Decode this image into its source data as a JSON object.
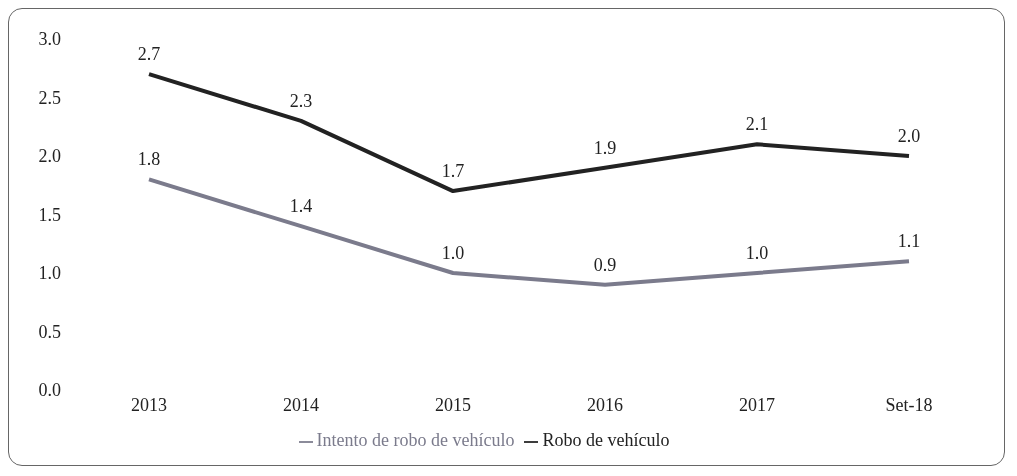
{
  "chart_data": {
    "type": "line",
    "categories": [
      "2013",
      "2014",
      "2015",
      "2016",
      "2017",
      "Set-18"
    ],
    "series": [
      {
        "name": "Robo de vehículo",
        "color": "#222222",
        "values": [
          2.7,
          2.3,
          1.7,
          1.9,
          2.1,
          2.0
        ],
        "value_labels": [
          "2.7",
          "2.3",
          "1.7",
          "1.9",
          "2.1",
          "2.0"
        ]
      },
      {
        "name": "Intento de robo de vehículo",
        "color": "#7b7b8c",
        "values": [
          1.8,
          1.4,
          1.0,
          0.9,
          1.0,
          1.1
        ],
        "value_labels": [
          "1.8",
          "1.4",
          "1.0",
          "0.9",
          "1.0",
          "1.1"
        ]
      }
    ],
    "ylim": [
      0,
      3
    ],
    "yticks": [
      {
        "value": 0,
        "label": "0.0"
      },
      {
        "value": 0.5,
        "label": "0.5"
      },
      {
        "value": 1,
        "label": "1.0"
      },
      {
        "value": 1.5,
        "label": "1.5"
      },
      {
        "value": 2,
        "label": "2.0"
      },
      {
        "value": 2.5,
        "label": "2.5"
      },
      {
        "value": 3,
        "label": "3.0"
      }
    ],
    "grid": false,
    "legend": "bottom",
    "marker": "none",
    "line_style": "solid"
  }
}
